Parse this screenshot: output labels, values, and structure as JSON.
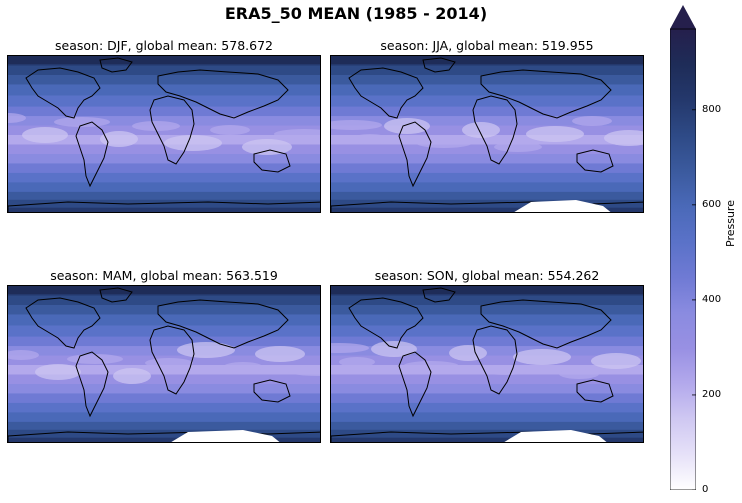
{
  "figure": {
    "title": "ERA5_50 MEAN (1985 - 2014)",
    "panels": [
      {
        "season": "DJF",
        "title": "season: DJF, global mean: 578.672"
      },
      {
        "season": "JJA",
        "title": "season: JJA, global mean: 519.955"
      },
      {
        "season": "MAM",
        "title": "season: MAM, global mean: 563.519"
      },
      {
        "season": "SON",
        "title": "season: SON, global mean: 554.262"
      }
    ]
  },
  "colorbar": {
    "label": "Pressure",
    "min": 0,
    "max": 970,
    "ticks": [
      "0",
      "200",
      "400",
      "600",
      "800"
    ],
    "colors": [
      "#ffffff",
      "#e6e1f8",
      "#cfc8f2",
      "#b3a9ec",
      "#9890e3",
      "#8a8be0",
      "#6f7ad4",
      "#5a72c8",
      "#4a69b8",
      "#3b5a9e",
      "#2e4a86",
      "#24386c",
      "#1e2c58",
      "#251f4c"
    ],
    "extend": "max"
  }
}
